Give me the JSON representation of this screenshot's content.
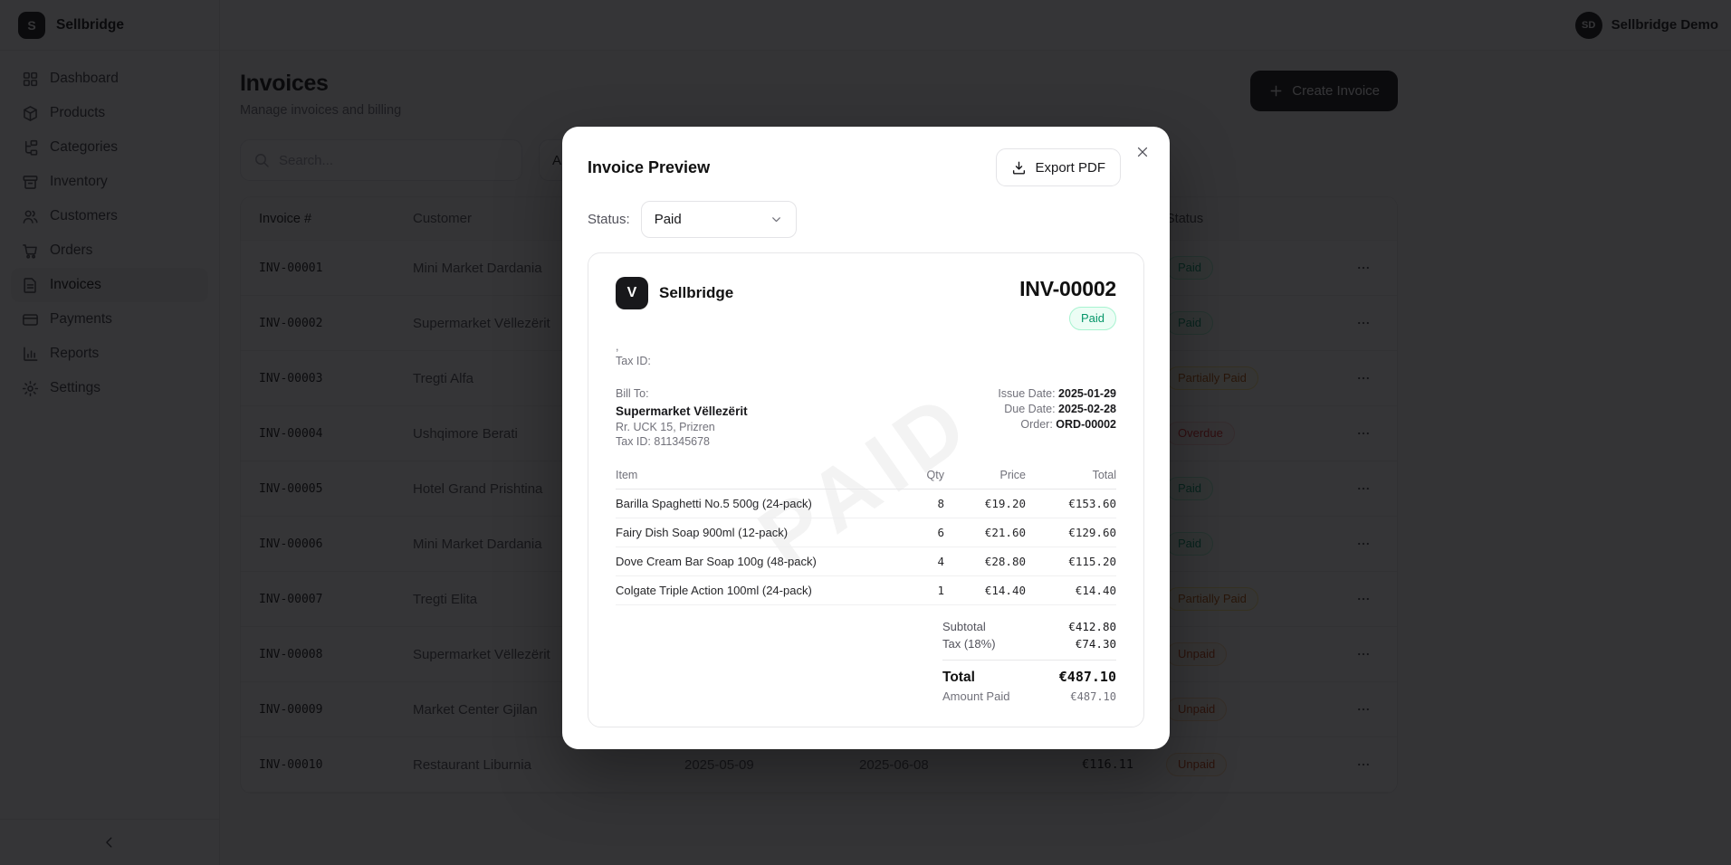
{
  "brand": {
    "name": "Sellbridge",
    "initial": "S"
  },
  "topbar": {
    "user_name": "Sellbridge Demo",
    "user_initials": "SD"
  },
  "sidebar": {
    "items": [
      {
        "key": "dashboard",
        "label": "Dashboard",
        "icon": "dashboard",
        "state": ""
      },
      {
        "key": "products",
        "label": "Products",
        "icon": "products",
        "state": ""
      },
      {
        "key": "categories",
        "label": "Categories",
        "icon": "categories",
        "state": ""
      },
      {
        "key": "inventory",
        "label": "Inventory",
        "icon": "inventory",
        "state": ""
      },
      {
        "key": "customers",
        "label": "Customers",
        "icon": "customers",
        "state": ""
      },
      {
        "key": "orders",
        "label": "Orders",
        "icon": "orders",
        "state": ""
      },
      {
        "key": "invoices",
        "label": "Invoices",
        "icon": "invoices",
        "state": "active"
      },
      {
        "key": "payments",
        "label": "Payments",
        "icon": "payments",
        "state": ""
      },
      {
        "key": "reports",
        "label": "Reports",
        "icon": "reports",
        "state": ""
      },
      {
        "key": "settings",
        "label": "Settings",
        "icon": "settings",
        "state": ""
      }
    ]
  },
  "page": {
    "title": "Invoices",
    "subtitle": "Manage invoices and billing",
    "create_button": "Create Invoice",
    "search_placeholder": "Search...",
    "filter_value": "All"
  },
  "table": {
    "headers": {
      "invoice": "Invoice #",
      "customer": "Customer",
      "issue": "",
      "due": "",
      "total": "",
      "status": "Status",
      "actions": ""
    },
    "rows": [
      {
        "invoice": "INV-00001",
        "customer": "Mini Market Dardania",
        "issue": "",
        "due": "",
        "total": "",
        "status_label": "Paid",
        "status": "paid"
      },
      {
        "invoice": "INV-00002",
        "customer": "Supermarket Vëllezërit",
        "issue": "",
        "due": "",
        "total": "",
        "status_label": "Paid",
        "status": "paid"
      },
      {
        "invoice": "INV-00003",
        "customer": "Tregti Alfa",
        "issue": "",
        "due": "",
        "total": "",
        "status_label": "Partially Paid",
        "status": "partial"
      },
      {
        "invoice": "INV-00004",
        "customer": "Ushqimore Berati",
        "issue": "",
        "due": "",
        "total": "",
        "status_label": "Overdue",
        "status": "overdue"
      },
      {
        "invoice": "INV-00005",
        "customer": "Hotel Grand Prishtina",
        "issue": "",
        "due": "",
        "total": "",
        "status_label": "Paid",
        "status": "paid"
      },
      {
        "invoice": "INV-00006",
        "customer": "Mini Market Dardania",
        "issue": "",
        "due": "",
        "total": "",
        "status_label": "Paid",
        "status": "paid"
      },
      {
        "invoice": "INV-00007",
        "customer": "Tregti Elita",
        "issue": "",
        "due": "",
        "total": "",
        "status_label": "Partially Paid",
        "status": "partial"
      },
      {
        "invoice": "INV-00008",
        "customer": "Supermarket Vëllezërit",
        "issue": "",
        "due": "",
        "total": "",
        "status_label": "Unpaid",
        "status": "unpaid"
      },
      {
        "invoice": "INV-00009",
        "customer": "Market Center Gjilan",
        "issue": "",
        "due": "",
        "total": "",
        "status_label": "Unpaid",
        "status": "unpaid"
      },
      {
        "invoice": "INV-00010",
        "customer": "Restaurant Liburnia",
        "issue": "2025-05-09",
        "due": "2025-06-08",
        "total": "€116.11",
        "status_label": "Unpaid",
        "status": "unpaid"
      }
    ]
  },
  "modal": {
    "title": "Invoice Preview",
    "export_button": "Export PDF",
    "status_label": "Status:",
    "status_value": "Paid",
    "invoice": {
      "logo_letter": "V",
      "company": "Sellbridge",
      "number": "INV-00002",
      "badge": "Paid",
      "company_address": ",",
      "company_tax": "Tax ID:",
      "bill_to_label": "Bill To:",
      "bill_name": "Supermarket Vëllezërit",
      "bill_address": "Rr. UCK 15, Prizren",
      "bill_tax": "Tax ID: 811345678",
      "meta": [
        {
          "label": "Issue Date:",
          "value": "2025-01-29"
        },
        {
          "label": "Due Date:",
          "value": "2025-02-28"
        },
        {
          "label": "Order:",
          "value": "ORD-00002"
        }
      ],
      "items_headers": {
        "item": "Item",
        "qty": "Qty",
        "price": "Price",
        "total": "Total"
      },
      "items": [
        {
          "name": "Barilla Spaghetti No.5 500g (24-pack)",
          "qty": "8",
          "price": "€19.20",
          "total": "€153.60"
        },
        {
          "name": "Fairy Dish Soap 900ml (12-pack)",
          "qty": "6",
          "price": "€21.60",
          "total": "€129.60"
        },
        {
          "name": "Dove Cream Bar Soap 100g (48-pack)",
          "qty": "4",
          "price": "€28.80",
          "total": "€115.20"
        },
        {
          "name": "Colgate Triple Action 100ml (24-pack)",
          "qty": "1",
          "price": "€14.40",
          "total": "€14.40"
        }
      ],
      "totals": {
        "subtotal_label": "Subtotal",
        "subtotal": "€412.80",
        "tax_label": "Tax (18%)",
        "tax": "€74.30",
        "total_label": "Total",
        "total": "€487.10",
        "paid_label": "Amount Paid",
        "paid": "€487.10"
      },
      "watermark": "PAID"
    }
  },
  "colors": {
    "accent": "#18181b",
    "paid": "#059669",
    "partially_paid": "#b45309",
    "overdue": "#dc2626",
    "unpaid": "#c2410c"
  }
}
